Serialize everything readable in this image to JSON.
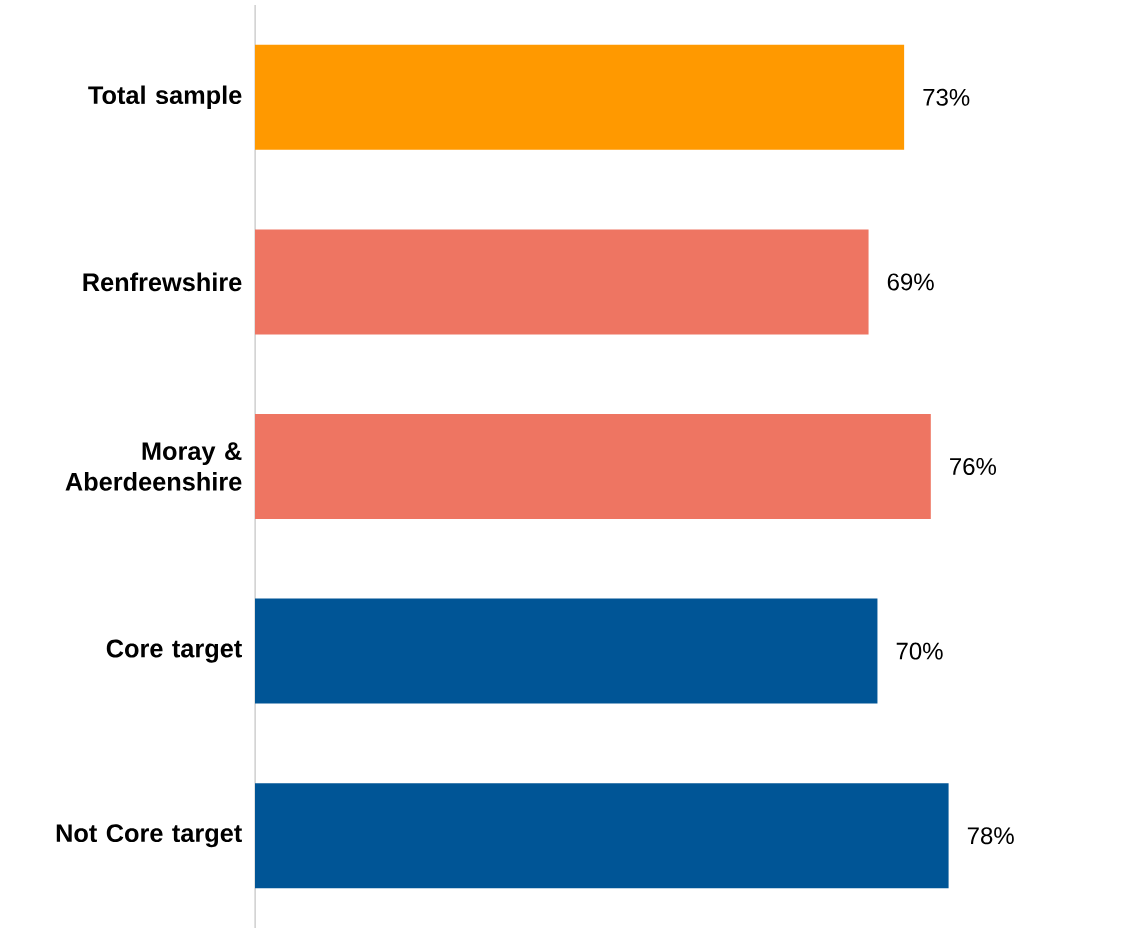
{
  "chart_data": {
    "type": "bar",
    "orientation": "horizontal",
    "categories": [
      "Total sample",
      "Renfrewshire",
      "Moray & Aberdeenshire",
      "Core target",
      "Not Core target"
    ],
    "values": [
      73,
      69,
      76,
      70,
      78
    ],
    "colors": [
      "#ff9900",
      "#ee7562",
      "#ee7562",
      "#005596",
      "#005596"
    ],
    "value_labels": [
      "73%",
      "69%",
      "76%",
      "70%",
      "78%"
    ],
    "grid": false
  }
}
